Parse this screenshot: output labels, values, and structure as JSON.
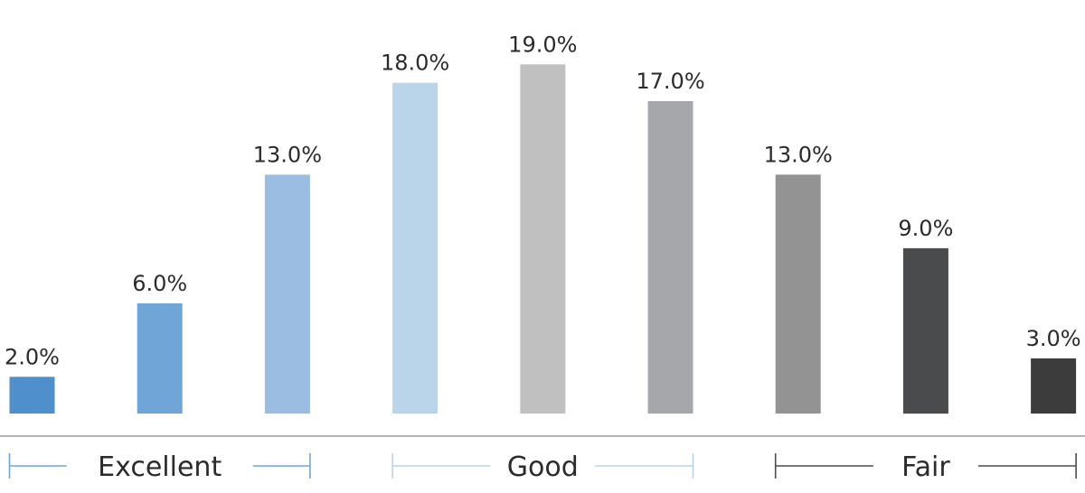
{
  "chart_data": {
    "type": "bar",
    "title": "",
    "xlabel": "",
    "ylabel": "",
    "ylim": [
      0,
      20
    ],
    "grid": false,
    "legend": "none",
    "values": [
      2.0,
      6.0,
      13.0,
      18.0,
      19.0,
      17.0,
      13.0,
      9.0,
      3.0
    ],
    "data_labels": [
      "2.0%",
      "6.0%",
      "13.0%",
      "18.0%",
      "19.0%",
      "17.0%",
      "13.0%",
      "9.0%",
      "3.0%"
    ],
    "bar_colors": [
      "#4f8fcb",
      "#6fa5d7",
      "#9bbde2",
      "#bad4ea",
      "#c0c0c0",
      "#a6a7aa",
      "#939393",
      "#4a4b4d",
      "#3b3c3b"
    ],
    "groups": [
      {
        "label": "Excellent",
        "first_bar": 0,
        "last_bar": 2,
        "color": "#6fa5d7"
      },
      {
        "label": "Good",
        "first_bar": 3,
        "last_bar": 5,
        "color": "#bad4ea"
      },
      {
        "label": "Fair",
        "first_bar": 6,
        "last_bar": 8,
        "color": "#4a4b4d"
      }
    ],
    "baseline_color": "#b3b3b3"
  }
}
